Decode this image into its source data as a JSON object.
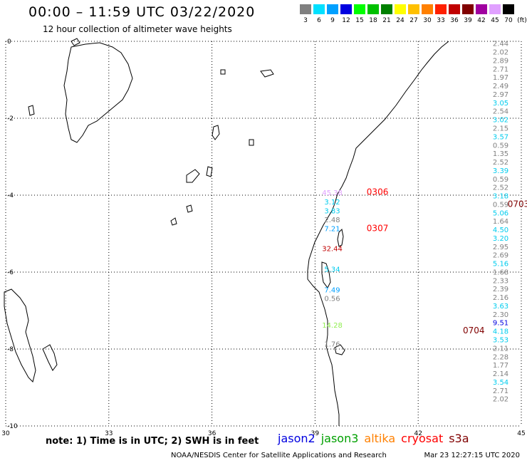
{
  "header": {
    "title": "00:00 – 11:59 UTC 03/22/2020",
    "subtitle": "12 hour collection of altimeter wave heights",
    "units": "(ft)"
  },
  "color_scale": [
    {
      "label": "3",
      "color": "#808080"
    },
    {
      "label": "6",
      "color": "#00e0ff"
    },
    {
      "label": "9",
      "color": "#00a0ff"
    },
    {
      "label": "12",
      "color": "#0000e0"
    },
    {
      "label": "15",
      "color": "#00ff00"
    },
    {
      "label": "18",
      "color": "#00c000"
    },
    {
      "label": "21",
      "color": "#008000"
    },
    {
      "label": "24",
      "color": "#ffff00"
    },
    {
      "label": "27",
      "color": "#ffc000"
    },
    {
      "label": "30",
      "color": "#ff8000"
    },
    {
      "label": "33",
      "color": "#ff2000"
    },
    {
      "label": "36",
      "color": "#c00000"
    },
    {
      "label": "39",
      "color": "#800000"
    },
    {
      "label": "42",
      "color": "#a000a0"
    },
    {
      "label": "45",
      "color": "#e0a0ff"
    },
    {
      "label": "70",
      "color": "#000000"
    }
  ],
  "axes": {
    "lon_ticks": [
      "30",
      "33",
      "36",
      "39",
      "42",
      "45"
    ],
    "lat_ticks": [
      "0",
      "-2",
      "-4",
      "-6",
      "-8",
      "-10"
    ]
  },
  "tracks": [
    {
      "id": "east",
      "lon": 44.4,
      "points": [
        {
          "lat": -0.05,
          "v": "2.44",
          "c": "#808080"
        },
        {
          "lat": -0.27,
          "v": "2.02",
          "c": "#808080"
        },
        {
          "lat": -0.49,
          "v": "2.89",
          "c": "#808080"
        },
        {
          "lat": -0.71,
          "v": "2.71",
          "c": "#808080"
        },
        {
          "lat": -0.93,
          "v": "1.97",
          "c": "#808080"
        },
        {
          "lat": -1.15,
          "v": "2.49",
          "c": "#808080"
        },
        {
          "lat": -1.37,
          "v": "2.97",
          "c": "#808080"
        },
        {
          "lat": -1.59,
          "v": "3.05",
          "c": "#00ccee"
        },
        {
          "lat": -1.81,
          "v": "2.54",
          "c": "#808080"
        },
        {
          "lat": -2.03,
          "v": "3.02",
          "c": "#00ccee"
        },
        {
          "lat": -2.25,
          "v": "2.15",
          "c": "#808080"
        },
        {
          "lat": -2.47,
          "v": "3.57",
          "c": "#00ccee"
        },
        {
          "lat": -2.69,
          "v": "0.59",
          "c": "#808080"
        },
        {
          "lat": -2.91,
          "v": "1.35",
          "c": "#808080"
        },
        {
          "lat": -3.13,
          "v": "2.52",
          "c": "#808080"
        },
        {
          "lat": -3.35,
          "v": "3.39",
          "c": "#00ccee"
        },
        {
          "lat": -3.57,
          "v": "0.59",
          "c": "#808080"
        },
        {
          "lat": -3.79,
          "v": "2.52",
          "c": "#808080"
        },
        {
          "lat": -4.01,
          "v": "3.18",
          "c": "#00ccee"
        },
        {
          "lat": -4.23,
          "v": "0.59",
          "c": "#808080"
        },
        {
          "lat": -4.45,
          "v": "5.06",
          "c": "#00ccee"
        },
        {
          "lat": -4.67,
          "v": "1.64",
          "c": "#808080"
        },
        {
          "lat": -4.89,
          "v": "4.50",
          "c": "#00ccee"
        },
        {
          "lat": -5.11,
          "v": "3.20",
          "c": "#00ccee"
        },
        {
          "lat": -5.33,
          "v": "2.95",
          "c": "#808080"
        },
        {
          "lat": -5.55,
          "v": "2.69",
          "c": "#808080"
        },
        {
          "lat": -5.77,
          "v": "5.16",
          "c": "#00ccee"
        },
        {
          "lat": -5.99,
          "v": "1.68",
          "c": "#808080"
        },
        {
          "lat": -6.21,
          "v": "2.33",
          "c": "#808080"
        },
        {
          "lat": -6.43,
          "v": "2.39",
          "c": "#808080"
        },
        {
          "lat": -6.65,
          "v": "2.16",
          "c": "#808080"
        },
        {
          "lat": -6.87,
          "v": "3.63",
          "c": "#00ccee"
        },
        {
          "lat": -7.09,
          "v": "2.30",
          "c": "#808080"
        },
        {
          "lat": -7.31,
          "v": "9.51",
          "c": "#0000e0"
        },
        {
          "lat": -7.53,
          "v": "4.18",
          "c": "#00ccee"
        },
        {
          "lat": -7.75,
          "v": "3.53",
          "c": "#00ccee"
        },
        {
          "lat": -7.97,
          "v": "2.11",
          "c": "#808080"
        },
        {
          "lat": -8.19,
          "v": "2.28",
          "c": "#808080"
        },
        {
          "lat": -8.41,
          "v": "1.77",
          "c": "#808080"
        },
        {
          "lat": -8.63,
          "v": "2.14",
          "c": "#808080"
        },
        {
          "lat": -8.85,
          "v": "3.54",
          "c": "#00ccee"
        },
        {
          "lat": -9.07,
          "v": "2.71",
          "c": "#808080"
        },
        {
          "lat": -9.29,
          "v": "2.02",
          "c": "#808080"
        }
      ]
    },
    {
      "id": "coastal",
      "lon": 39.5,
      "points": [
        {
          "lat": -3.93,
          "v": "45.38",
          "c": "#e0a0ff"
        },
        {
          "lat": -4.17,
          "v": "3.12",
          "c": "#00ccee"
        },
        {
          "lat": -4.4,
          "v": "3.83",
          "c": "#00ccee"
        },
        {
          "lat": -4.63,
          "v": "2.48",
          "c": "#808080"
        },
        {
          "lat": -4.86,
          "v": "7.21",
          "c": "#00a0ff"
        },
        {
          "lat": -5.38,
          "v": "32.44",
          "c": "#c00000"
        },
        {
          "lat": -5.92,
          "v": "5.34",
          "c": "#00ccee"
        },
        {
          "lat": -6.45,
          "v": "7.49",
          "c": "#00a0ff"
        },
        {
          "lat": -6.68,
          "v": "0.56",
          "c": "#808080"
        },
        {
          "lat": -7.37,
          "v": "14.28",
          "c": "#90ee50"
        },
        {
          "lat": -7.86,
          "v": "1.76",
          "c": "#808080"
        }
      ]
    }
  ],
  "pass_labels": [
    {
      "text": "0306",
      "lat": -3.92,
      "lon": 40.5,
      "color": "#ff0000"
    },
    {
      "text": "0307",
      "lat": -4.86,
      "lon": 40.5,
      "color": "#ff0000"
    },
    {
      "text": "0703",
      "lat": -4.23,
      "lon": 44.6,
      "color": "#800000"
    },
    {
      "text": "0704",
      "lat": -7.52,
      "lon": 43.3,
      "color": "#800000"
    }
  ],
  "note": "note:  1) Time is in UTC;  2) SWH is in feet",
  "satellites": [
    {
      "name": "jason2",
      "color": "#0000e0"
    },
    {
      "name": "jason3",
      "color": "#00a000"
    },
    {
      "name": "altika",
      "color": "#ff8000"
    },
    {
      "name": "cryosat",
      "color": "#ff0000"
    },
    {
      "name": "s3a",
      "color": "#800000"
    }
  ],
  "footer": {
    "credit": "NOAA/NESDIS Center for Satellite Applications and Research",
    "timestamp": "Mar 23 12:27:15 UTC 2020"
  }
}
